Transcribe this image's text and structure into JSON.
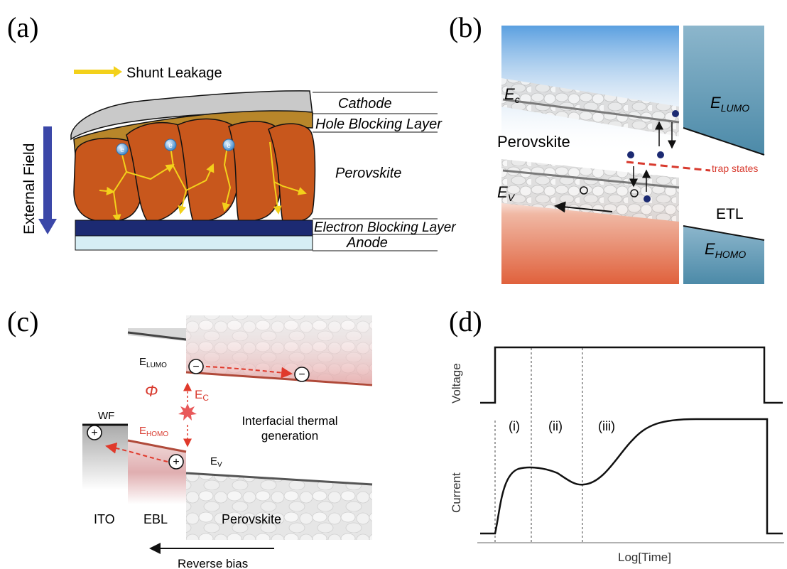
{
  "panels": {
    "a": {
      "letter": "(a)",
      "legend_text": "Shunt Leakage",
      "field_label": "External Field",
      "layers": {
        "cathode": "Cathode",
        "hbl": "Hole Blocking Layer",
        "perovskite": "Perovskite",
        "ebl": "Electron Blocking Layer",
        "anode": "Anode"
      },
      "charge_symbol": "e"
    },
    "b": {
      "letter": "(b)",
      "ec": "E",
      "ec_sub": "c",
      "ev": "E",
      "ev_sub": "V",
      "perovskite": "Perovskite",
      "trap_states": "trap states",
      "etl": "ETL",
      "elumo": "E",
      "elumo_sub": "LUMO",
      "ehomo": "E",
      "ehomo_sub": "HOMO"
    },
    "c": {
      "letter": "(c)",
      "elumo": "E",
      "elumo_sub": "LUMO",
      "phi": "Φ",
      "ec": "E",
      "ec_sub": "C",
      "wf": "WF",
      "ehomo": "E",
      "ehomo_sub": "HOMO",
      "ev": "E",
      "ev_sub": "V",
      "interfacial_1": "Interfacial thermal",
      "interfacial_2": "generation",
      "ito": "ITO",
      "ebl": "EBL",
      "perovskite": "Perovskite",
      "reverse_bias": "Reverse bias",
      "minus": "−",
      "plus": "+"
    },
    "d": {
      "letter": "(d)",
      "voltage": "Voltage",
      "current": "Current",
      "xlabel": "Log[Time]",
      "regions": [
        "(i)",
        "(ii)",
        "(iii)"
      ]
    }
  },
  "colors": {
    "perovskite_grain": "#c8571c",
    "cathode": "#c9c9c9",
    "hbl": "#b8862a",
    "ebl_layer": "#1c2a72",
    "anode": "#d6eef5",
    "arrow_field": "#3b47a8",
    "leakage": "#f3d11b",
    "trap": "#d83a2e",
    "etl": "#4f8fae",
    "hot_red": "#e05a3c",
    "cool_blue": "#4b8fd6",
    "band_red": "#b04a3a",
    "dark": "#111111"
  }
}
